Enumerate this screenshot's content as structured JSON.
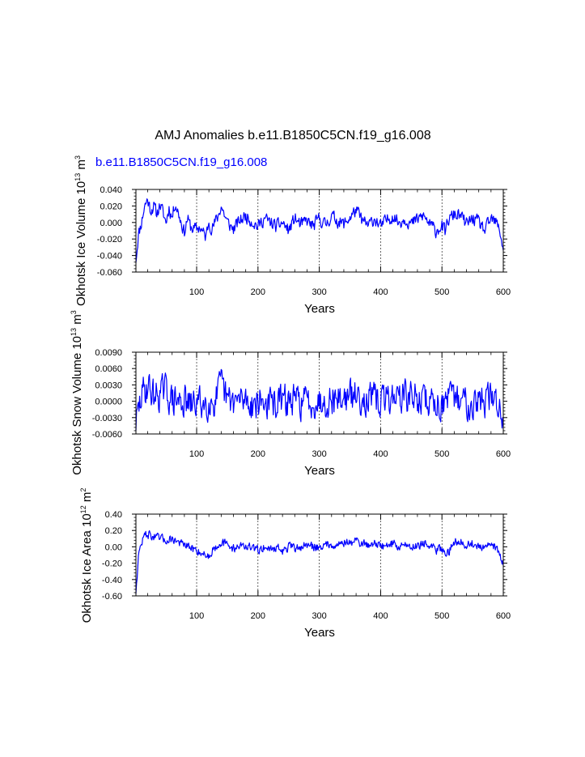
{
  "figure": {
    "title": "AMJ Anomalies b.e11.B1850C5CN.f19_g16.008",
    "series_label": "b.e11.B1850C5CN.f19_g16.008",
    "series_color": "#0000ff"
  },
  "chart_data": [
    {
      "type": "line",
      "ylabel_text": "Okhotsk Ice Volume 10",
      "ylabel_exp": "13",
      "ylabel_unit": " m",
      "ylabel_unit_exp": "3",
      "xlabel": "Years",
      "xlim": [
        1,
        600
      ],
      "ylim": [
        -0.06,
        0.04
      ],
      "xticks": [
        100,
        200,
        300,
        400,
        500,
        600
      ],
      "xtick_labels": [
        "100",
        "200",
        "300",
        "400",
        "500",
        "600"
      ],
      "yticks": [
        -0.06,
        -0.04,
        -0.02,
        0.0,
        0.02,
        0.04
      ],
      "ytick_labels": [
        "-0.060",
        "-0.040",
        "-0.020",
        "0.000",
        "0.020",
        "0.040"
      ],
      "grid_x": true,
      "series": [
        {
          "name": "b.e11.B1850C5CN.f19_g16.008",
          "anchors": [
            [
              1,
              -0.045
            ],
            [
              5,
              -0.015
            ],
            [
              10,
              0.0
            ],
            [
              15,
              0.02
            ],
            [
              20,
              0.028
            ],
            [
              25,
              0.015
            ],
            [
              30,
              0.02
            ],
            [
              35,
              0.01
            ],
            [
              40,
              0.022
            ],
            [
              45,
              0.012
            ],
            [
              50,
              0.0
            ],
            [
              55,
              0.018
            ],
            [
              60,
              0.006
            ],
            [
              65,
              0.024
            ],
            [
              70,
              0.012
            ],
            [
              75,
              0.0
            ],
            [
              80,
              -0.012
            ],
            [
              85,
              0.005
            ],
            [
              90,
              -0.005
            ],
            [
              95,
              -0.008
            ],
            [
              100,
              -0.008
            ],
            [
              105,
              -0.005
            ],
            [
              110,
              -0.012
            ],
            [
              115,
              -0.018
            ],
            [
              120,
              0.002
            ],
            [
              125,
              -0.008
            ],
            [
              130,
              0.0
            ],
            [
              135,
              0.008
            ],
            [
              140,
              0.02
            ],
            [
              145,
              0.01
            ],
            [
              150,
              0.0
            ],
            [
              160,
              -0.008
            ],
            [
              170,
              0.002
            ],
            [
              180,
              0.008
            ],
            [
              190,
              0.002
            ],
            [
              200,
              -0.005
            ],
            [
              210,
              0.005
            ],
            [
              220,
              0.0
            ],
            [
              230,
              -0.005
            ],
            [
              240,
              0.0
            ],
            [
              250,
              -0.01
            ],
            [
              260,
              0.005
            ],
            [
              270,
              -0.003
            ],
            [
              280,
              0.002
            ],
            [
              290,
              -0.005
            ],
            [
              300,
              0.005
            ],
            [
              310,
              -0.003
            ],
            [
              320,
              0.008
            ],
            [
              330,
              0.002
            ],
            [
              340,
              -0.002
            ],
            [
              350,
              0.006
            ],
            [
              360,
              0.015
            ],
            [
              370,
              0.002
            ],
            [
              380,
              -0.004
            ],
            [
              390,
              0.005
            ],
            [
              400,
              -0.005
            ],
            [
              410,
              0.003
            ],
            [
              420,
              0.008
            ],
            [
              430,
              0.0
            ],
            [
              440,
              0.005
            ],
            [
              450,
              -0.002
            ],
            [
              460,
              0.004
            ],
            [
              470,
              0.008
            ],
            [
              480,
              -0.002
            ],
            [
              490,
              -0.01
            ],
            [
              500,
              -0.004
            ],
            [
              505,
              -0.012
            ],
            [
              510,
              0.002
            ],
            [
              520,
              0.01
            ],
            [
              530,
              0.008
            ],
            [
              540,
              -0.002
            ],
            [
              550,
              0.005
            ],
            [
              560,
              0.0
            ],
            [
              570,
              -0.01
            ],
            [
              580,
              0.004
            ],
            [
              590,
              -0.002
            ],
            [
              595,
              -0.012
            ],
            [
              600,
              -0.032
            ]
          ],
          "noise_amp": 0.011,
          "seed": 11
        }
      ]
    },
    {
      "type": "line",
      "ylabel_text": "Okhotsk Snow Volume 10",
      "ylabel_exp": "13",
      "ylabel_unit": " m",
      "ylabel_unit_exp": "3",
      "xlabel": "Years",
      "xlim": [
        1,
        600
      ],
      "ylim": [
        -0.006,
        0.009
      ],
      "xticks": [
        100,
        200,
        300,
        400,
        500,
        600
      ],
      "xtick_labels": [
        "100",
        "200",
        "300",
        "400",
        "500",
        "600"
      ],
      "yticks": [
        -0.006,
        -0.003,
        0.0,
        0.003,
        0.006,
        0.009
      ],
      "ytick_labels": [
        "-0.0060",
        "-0.0030",
        "0.0000",
        "0.0030",
        "0.0060",
        "0.0090"
      ],
      "grid_x": true,
      "series": [
        {
          "name": "b.e11.B1850C5CN.f19_g16.008",
          "anchors": [
            [
              1,
              -0.004
            ],
            [
              5,
              -0.002
            ],
            [
              10,
              0.001
            ],
            [
              15,
              0.002
            ],
            [
              20,
              0.003
            ],
            [
              30,
              0.001
            ],
            [
              40,
              0.0015
            ],
            [
              50,
              0.002
            ],
            [
              60,
              0.0
            ],
            [
              70,
              0.0
            ],
            [
              80,
              0.0
            ],
            [
              90,
              -0.001
            ],
            [
              100,
              0.0
            ],
            [
              110,
              -0.0005
            ],
            [
              120,
              0.0
            ],
            [
              130,
              0.0
            ],
            [
              140,
              0.003
            ],
            [
              150,
              0.0
            ],
            [
              160,
              0.0
            ],
            [
              170,
              0.0
            ],
            [
              180,
              0.0005
            ],
            [
              190,
              -0.0005
            ],
            [
              200,
              0.0
            ],
            [
              220,
              -0.0005
            ],
            [
              240,
              0.0
            ],
            [
              260,
              0.0
            ],
            [
              280,
              0.0
            ],
            [
              300,
              0.0
            ],
            [
              320,
              0.0005
            ],
            [
              340,
              0.0005
            ],
            [
              360,
              0.001
            ],
            [
              380,
              0.0005
            ],
            [
              400,
              0.0
            ],
            [
              420,
              0.001
            ],
            [
              440,
              0.001
            ],
            [
              460,
              0.0005
            ],
            [
              480,
              0.0
            ],
            [
              500,
              -0.0005
            ],
            [
              520,
              0.0005
            ],
            [
              540,
              0.0
            ],
            [
              560,
              0.0
            ],
            [
              580,
              0.0005
            ],
            [
              590,
              0.0
            ],
            [
              600,
              -0.0035
            ]
          ],
          "noise_amp": 0.0042,
          "seed": 29
        }
      ]
    },
    {
      "type": "line",
      "ylabel_text": "Okhotsk Ice Area 10",
      "ylabel_exp": "12",
      "ylabel_unit": " m",
      "ylabel_unit_exp": "2",
      "xlabel": "Years",
      "xlim": [
        1,
        600
      ],
      "ylim": [
        -0.6,
        0.4
      ],
      "xticks": [
        100,
        200,
        300,
        400,
        500,
        600
      ],
      "xtick_labels": [
        "100",
        "200",
        "300",
        "400",
        "500",
        "600"
      ],
      "yticks": [
        -0.6,
        -0.4,
        -0.2,
        0.0,
        0.2,
        0.4
      ],
      "ytick_labels": [
        "-0.60",
        "-0.40",
        "-0.20",
        "0.00",
        "0.20",
        "0.40"
      ],
      "grid_x": true,
      "series": [
        {
          "name": "b.e11.B1850C5CN.f19_g16.008",
          "anchors": [
            [
              1,
              -0.55
            ],
            [
              5,
              -0.12
            ],
            [
              10,
              0.05
            ],
            [
              15,
              0.14
            ],
            [
              20,
              0.16
            ],
            [
              30,
              0.12
            ],
            [
              40,
              0.1
            ],
            [
              50,
              0.08
            ],
            [
              60,
              0.1
            ],
            [
              70,
              0.06
            ],
            [
              80,
              0.02
            ],
            [
              90,
              -0.02
            ],
            [
              100,
              -0.04
            ],
            [
              110,
              -0.08
            ],
            [
              120,
              -0.12
            ],
            [
              125,
              -0.05
            ],
            [
              130,
              0.0
            ],
            [
              140,
              0.06
            ],
            [
              150,
              0.02
            ],
            [
              160,
              -0.02
            ],
            [
              170,
              0.02
            ],
            [
              180,
              0.01
            ],
            [
              190,
              -0.02
            ],
            [
              200,
              -0.04
            ],
            [
              210,
              0.0
            ],
            [
              220,
              -0.03
            ],
            [
              230,
              0.0
            ],
            [
              240,
              -0.06
            ],
            [
              250,
              0.0
            ],
            [
              260,
              -0.02
            ],
            [
              270,
              0.0
            ],
            [
              280,
              0.02
            ],
            [
              290,
              0.0
            ],
            [
              300,
              0.0
            ],
            [
              310,
              0.02
            ],
            [
              320,
              0.04
            ],
            [
              330,
              0.02
            ],
            [
              340,
              0.06
            ],
            [
              350,
              0.04
            ],
            [
              360,
              0.08
            ],
            [
              370,
              0.04
            ],
            [
              380,
              0.02
            ],
            [
              390,
              0.06
            ],
            [
              400,
              0.0
            ],
            [
              410,
              0.02
            ],
            [
              420,
              0.04
            ],
            [
              430,
              0.0
            ],
            [
              440,
              0.03
            ],
            [
              450,
              0.0
            ],
            [
              460,
              0.02
            ],
            [
              470,
              0.05
            ],
            [
              480,
              0.0
            ],
            [
              490,
              -0.04
            ],
            [
              500,
              -0.02
            ],
            [
              510,
              -0.08
            ],
            [
              520,
              0.06
            ],
            [
              530,
              0.08
            ],
            [
              540,
              0.02
            ],
            [
              550,
              0.04
            ],
            [
              560,
              0.0
            ],
            [
              570,
              -0.04
            ],
            [
              580,
              0.04
            ],
            [
              590,
              -0.02
            ],
            [
              600,
              -0.2
            ]
          ],
          "noise_amp": 0.075,
          "seed": 47
        }
      ]
    }
  ]
}
